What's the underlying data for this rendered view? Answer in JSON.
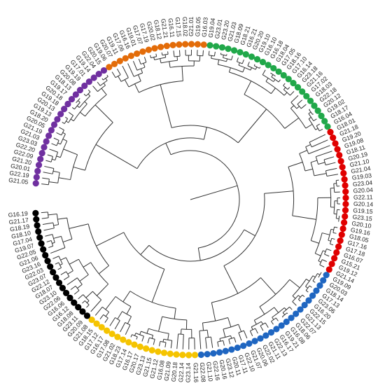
{
  "tree": {
    "type": "circular-dendrogram",
    "line_color": "#333333",
    "groups": [
      {
        "name": "purple",
        "color": "#7030a0",
        "count": 23
      },
      {
        "name": "orange",
        "color": "#e36c09",
        "count": 17
      },
      {
        "name": "green",
        "color": "#21a84a",
        "count": 25
      },
      {
        "name": "red",
        "color": "#e00000",
        "count": 24
      },
      {
        "name": "blue",
        "color": "#1f66c1",
        "count": 26
      },
      {
        "name": "yellow",
        "color": "#f5c400",
        "count": 19
      },
      {
        "name": "black",
        "color": "#000000",
        "count": 20
      }
    ],
    "labels": [
      "G21.05",
      "G22.19",
      "G20.01",
      "G21.20",
      "G22.09",
      "G22.20",
      "G23.03",
      "G21.03",
      "G21.19",
      "G20.05",
      "G18.20",
      "G19.13",
      "G20.13",
      "G19.18",
      "G20.18",
      "G19.17",
      "G18.13",
      "G20.08",
      "G19.19",
      "G17.01",
      "G19.14",
      "G22.04",
      "G20.15",
      "G19.06",
      "G20.07",
      "G19.11",
      "G17.06",
      "G16.16",
      "G19.01",
      "G17.07",
      "G17.19",
      "G20.02",
      "G18.12",
      "G21.21",
      "G16.11",
      "G17.15",
      "G18.02",
      "G21.01",
      "G19.05",
      "G16.03",
      "G19.04",
      "G23.01",
      "G23.20",
      "G21.03",
      "G18.09",
      "G18.21",
      "G16.21",
      "G20.20",
      "G19.10",
      "G16.10",
      "G16.18",
      "G18.04",
      "G17.05",
      "G18.16",
      "G17.10",
      "G16.14",
      "G23.18",
      "G21.16",
      "G17.02",
      "G18.03",
      "G22.18",
      "G20.12",
      "G19.02",
      "G18.17",
      "G16.04",
      "G18.01",
      "G21.18",
      "G19.20",
      "G19.08",
      "G18.11",
      "G20.19",
      "G21.10",
      "G21.04",
      "G19.03",
      "G23.04",
      "G20.04",
      "G22.11",
      "G20.14",
      "G19.15",
      "G23.15",
      "G20.10",
      "G19.16",
      "G18.05",
      "G17.16",
      "G17.18",
      "G16.07",
      "G15.21",
      "G19.12",
      "G21.14",
      "G19.09",
      "G20.03",
      "G18.14",
      "G17.13",
      "G23.06",
      "G16.20",
      "G22.15",
      "G21.13",
      "G22.07",
      "G18.06",
      "G16.08",
      "G19.21",
      "G16.17",
      "G22.13",
      "G21.11",
      "G22.02",
      "G20.06",
      "G21.07",
      "G22.10",
      "G17.11",
      "G20.11",
      "G23.12",
      "G20.16",
      "G22.16",
      "G21.10",
      "G22.08",
      "G21.16",
      "G23.14",
      "G22.14",
      "G20.18",
      "G21.09",
      "G16.08",
      "G21.12",
      "G21.15",
      "G23.13",
      "G20.17",
      "G16.17",
      "G17.14",
      "G18.23",
      "G21.02",
      "G17.08",
      "G16.17",
      "G17.12",
      "G18.15",
      "G21.08",
      "G20.09",
      "G23.11",
      "G18.08",
      "G16.12",
      "G16.06",
      "G22.06",
      "G23.10",
      "G18.07",
      "G22.12",
      "G23.07",
      "G22.03",
      "G23.16",
      "G21.06",
      "G22.05",
      "G19.07",
      "G17.04",
      "G18.10",
      "G18.19",
      "G21.17",
      "G16.19"
    ]
  }
}
